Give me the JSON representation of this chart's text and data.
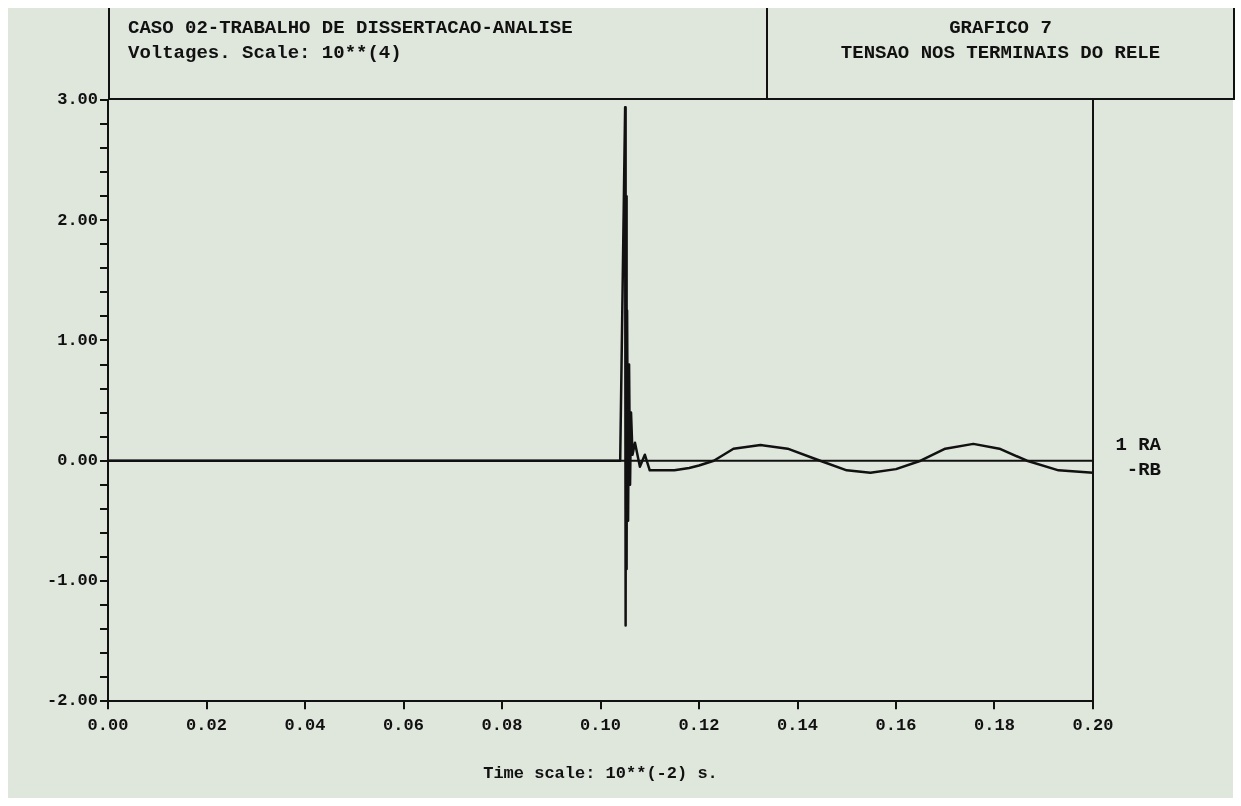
{
  "chart_data": {
    "type": "line",
    "title": "CASO 02-TRABALHO DE DISSERTACAO-ANALISE",
    "subtitle": "Voltages. Scale: 10**(4)",
    "annotations": [
      "GRAFICO 7",
      "TENSAO NOS TERMINAIS DO RELE"
    ],
    "xlabel": "Time scale: 10**(-2) s.",
    "series": [
      {
        "name": "1 RA -RB",
        "color": "#111111",
        "x": [
          0,
          0.104,
          0.105,
          0.1051,
          0.1052,
          0.1053,
          0.1054,
          0.1056,
          0.1058,
          0.106,
          0.1062,
          0.1065,
          0.107,
          0.108,
          0.109,
          0.11,
          0.112,
          0.115,
          0.118,
          0.12,
          0.123,
          0.127,
          0.1325,
          0.138,
          0.1446,
          0.15,
          0.1548,
          0.16,
          0.165,
          0.17,
          0.1757,
          0.181,
          0.1866,
          0.193,
          0.2
        ],
        "values": [
          0,
          0,
          2.94,
          -1.37,
          2.2,
          -0.9,
          1.25,
          -0.5,
          0.8,
          -0.2,
          0.4,
          0.05,
          0.15,
          -0.05,
          0.05,
          -0.08,
          -0.08,
          -0.08,
          -0.06,
          -0.04,
          0,
          0.1,
          0.13,
          0.1,
          0,
          -0.08,
          -0.1,
          -0.07,
          0,
          0.1,
          0.14,
          0.1,
          0,
          -0.08,
          -0.1
        ]
      }
    ],
    "xlim": [
      0,
      0.2
    ],
    "xticks": [
      {
        "value": 0,
        "label": "0.00"
      },
      {
        "value": 0.02,
        "label": "0.02"
      },
      {
        "value": 0.04,
        "label": "0.04"
      },
      {
        "value": 0.06,
        "label": "0.06"
      },
      {
        "value": 0.08,
        "label": "0.08"
      },
      {
        "value": 0.1,
        "label": "0.10"
      },
      {
        "value": 0.12,
        "label": "0.12"
      },
      {
        "value": 0.14,
        "label": "0.14"
      },
      {
        "value": 0.16,
        "label": "0.16"
      },
      {
        "value": 0.18,
        "label": "0.18"
      },
      {
        "value": 0.2,
        "label": "0.20"
      }
    ],
    "ylim": [
      -2,
      3
    ],
    "yticks": [
      {
        "value": -2,
        "label": "-2.00"
      },
      {
        "value": -1.8,
        "label": null
      },
      {
        "value": -1.6,
        "label": null
      },
      {
        "value": -1.4,
        "label": null
      },
      {
        "value": -1.2,
        "label": null
      },
      {
        "value": -1,
        "label": "-1.00"
      },
      {
        "value": -0.8,
        "label": null
      },
      {
        "value": -0.6,
        "label": null
      },
      {
        "value": -0.4,
        "label": null
      },
      {
        "value": -0.2,
        "label": null
      },
      {
        "value": 0,
        "label": "0.00"
      },
      {
        "value": 0.2,
        "label": null
      },
      {
        "value": 0.4,
        "label": null
      },
      {
        "value": 0.6,
        "label": null
      },
      {
        "value": 0.8,
        "label": null
      },
      {
        "value": 1,
        "label": "1.00"
      },
      {
        "value": 1.2,
        "label": null
      },
      {
        "value": 1.4,
        "label": null
      },
      {
        "value": 1.6,
        "label": null
      },
      {
        "value": 1.8,
        "label": null
      },
      {
        "value": 2,
        "label": "2.00"
      },
      {
        "value": 2.2,
        "label": null
      },
      {
        "value": 2.4,
        "label": null
      },
      {
        "value": 2.6,
        "label": null
      },
      {
        "value": 2.8,
        "label": null
      },
      {
        "value": 3,
        "label": "3.00"
      }
    ],
    "ref_lines": [
      {
        "axis": "y",
        "value": 0,
        "color": "#111111"
      }
    ],
    "grid": false,
    "legend": false,
    "marker": "none",
    "line_style": "solid"
  }
}
